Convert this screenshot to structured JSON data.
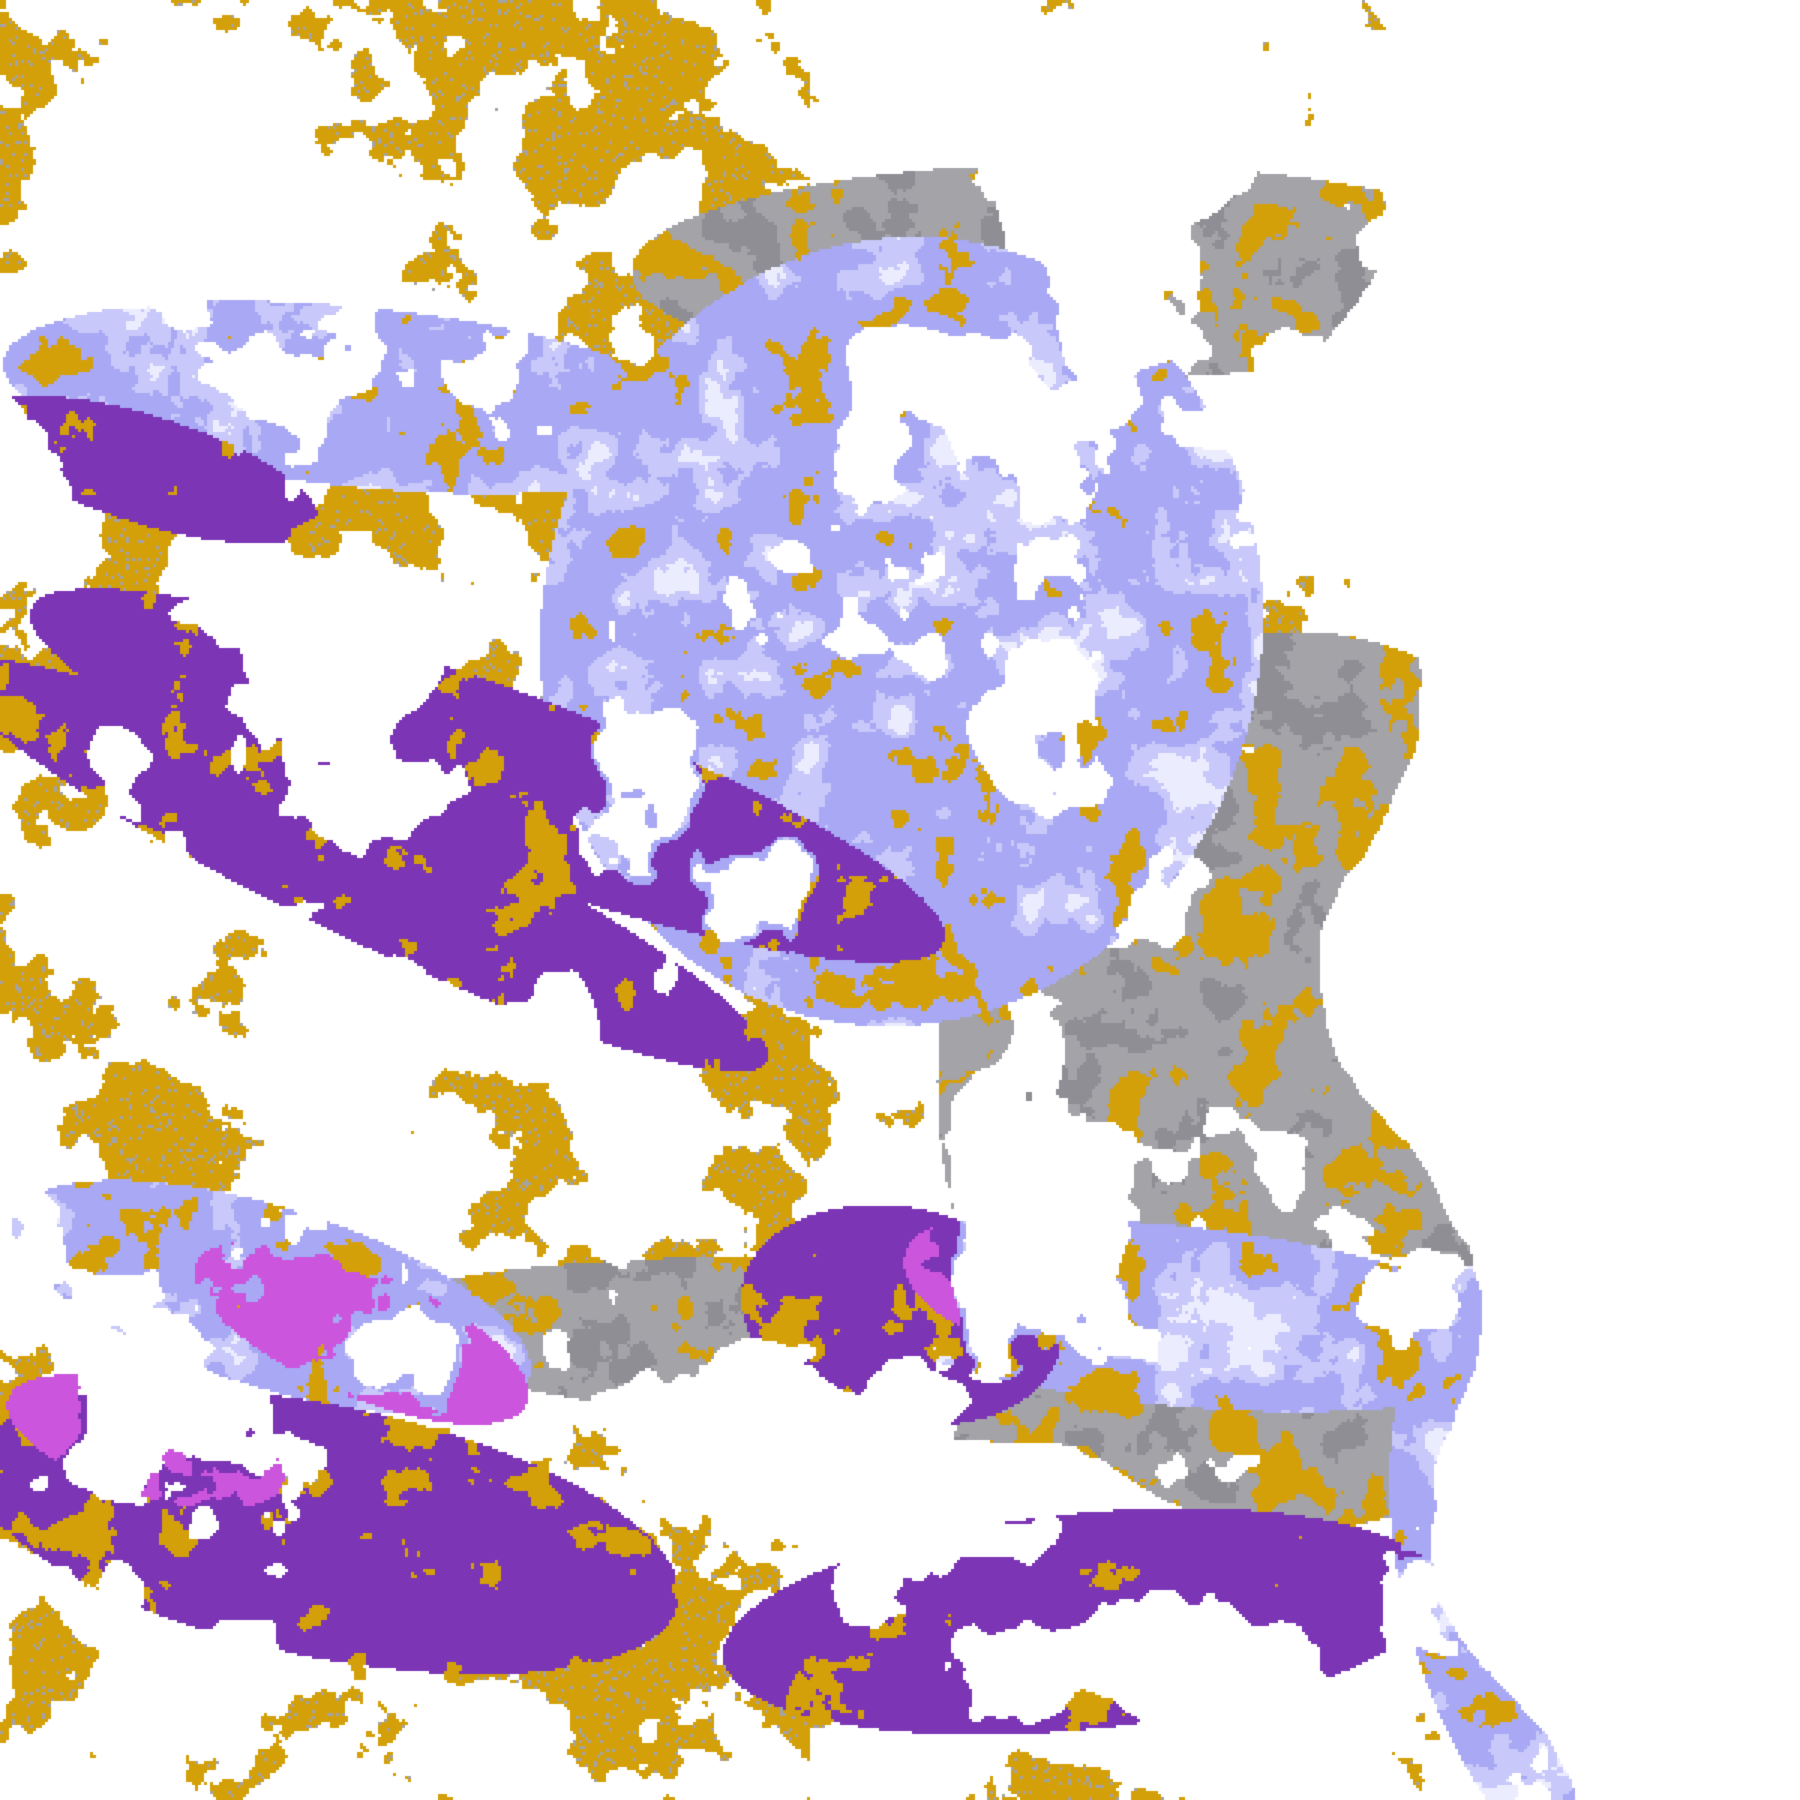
{
  "image": {
    "kind": "satellite cloud-type classification",
    "background": "#ffffff",
    "palette": {
      "low_cloud_gold": "#d4a00a",
      "opaque_high_purple": "#7b35b5",
      "thick_magenta": "#cc55dd",
      "mid_gray": "#a3a3a8",
      "dark_gray": "#8e8e94",
      "lavender": "#a8a8f4",
      "light_lavender": "#c8c8fa",
      "pale": "#ececff"
    }
  }
}
